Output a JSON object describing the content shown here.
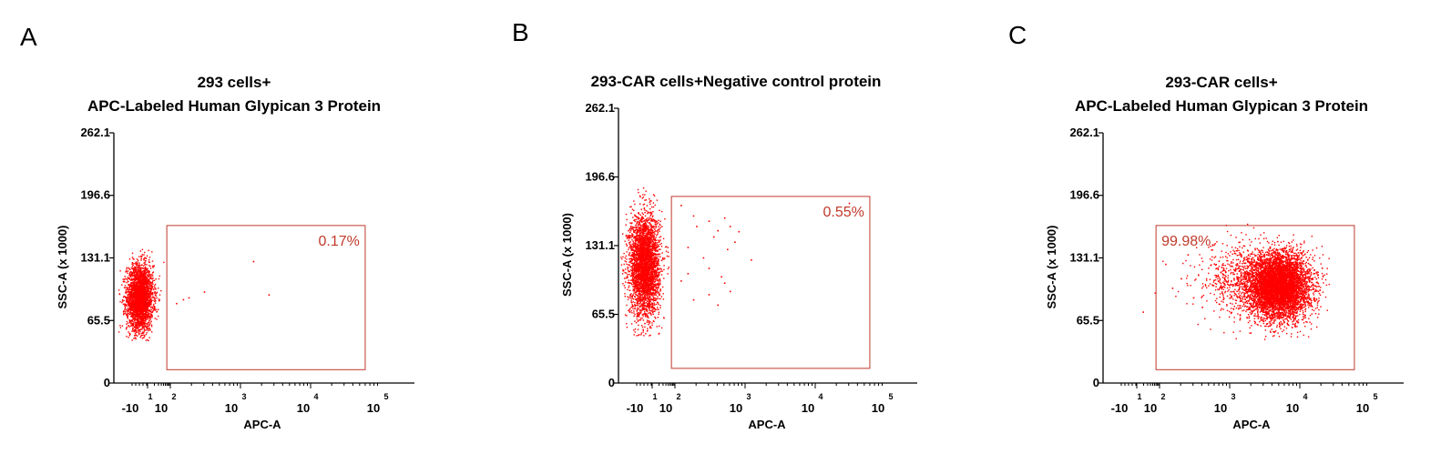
{
  "chart_data": [
    {
      "type": "scatter",
      "panel_label": "A",
      "title_lines": [
        "293 cells+",
        "APC-Labeled Human Glypican 3 Protein"
      ],
      "xlabel": "APC-A",
      "ylabel": "SSC-A (x 1000)",
      "x_scale": "log",
      "x_ticks": [
        {
          "base": "-10",
          "exp": "1"
        },
        {
          "base": "10",
          "exp": "2"
        },
        {
          "base": "10",
          "exp": "3"
        },
        {
          "base": "10",
          "exp": "4"
        },
        {
          "base": "10",
          "exp": "5"
        }
      ],
      "y_ticks": [
        "0",
        "65.5",
        "131.1",
        "196.6",
        "262.1"
      ],
      "ylim": [
        0,
        262.1
      ],
      "gate": {
        "x_min": 70,
        "x_max": 60000,
        "y_min": 14,
        "y_max": 165
      },
      "gate_percent": "0.17%",
      "populations": [
        {
          "x_center": 0,
          "x_spread": 8,
          "y_center": 90,
          "y_spread": 17,
          "count": 3000
        }
      ],
      "outlier_points": [
        [
          150,
          88
        ],
        [
          300,
          96
        ],
        [
          120,
          84
        ],
        [
          1500,
          128
        ],
        [
          2500,
          93
        ],
        [
          180,
          90
        ]
      ]
    },
    {
      "type": "scatter",
      "panel_label": "B",
      "title_lines": [
        "293-CAR cells+Negative control protein"
      ],
      "xlabel": "APC-A",
      "ylabel": "SSC-A (x 1000)",
      "x_scale": "log",
      "x_ticks": [
        {
          "base": "-10",
          "exp": "1"
        },
        {
          "base": "10",
          "exp": "2"
        },
        {
          "base": "10",
          "exp": "3"
        },
        {
          "base": "10",
          "exp": "4"
        },
        {
          "base": "10",
          "exp": "5"
        }
      ],
      "y_ticks": [
        "0",
        "65.5",
        "131.1",
        "196.6",
        "262.1"
      ],
      "ylim": [
        0,
        262.1
      ],
      "gate": {
        "x_min": 70,
        "x_max": 60000,
        "y_min": 14,
        "y_max": 178
      },
      "gate_percent": "0.55%",
      "populations": [
        {
          "x_center": 0,
          "x_spread": 9,
          "y_center": 113,
          "y_spread": 24,
          "count": 3500
        }
      ],
      "outlier_points": [
        [
          200,
          150
        ],
        [
          300,
          155
        ],
        [
          400,
          146
        ],
        [
          500,
          158
        ],
        [
          600,
          150
        ],
        [
          350,
          140
        ],
        [
          250,
          120
        ],
        [
          150,
          130
        ],
        [
          180,
          80
        ],
        [
          300,
          85
        ],
        [
          550,
          128
        ],
        [
          700,
          135
        ],
        [
          450,
          102
        ],
        [
          500,
          96
        ],
        [
          1200,
          118
        ],
        [
          800,
          145
        ],
        [
          150,
          105
        ],
        [
          300,
          110
        ],
        [
          120,
          98
        ],
        [
          600,
          88
        ],
        [
          400,
          75
        ],
        [
          30000,
          172
        ],
        [
          180,
          160
        ],
        [
          120,
          170
        ]
      ]
    },
    {
      "type": "scatter",
      "panel_label": "C",
      "title_lines": [
        "293-CAR cells+",
        "APC-Labeled Human Glypican 3 Protein"
      ],
      "xlabel": "APC-A",
      "ylabel": "SSC-A (x 1000)",
      "x_scale": "log",
      "x_ticks": [
        {
          "base": "-10",
          "exp": "1"
        },
        {
          "base": "10",
          "exp": "2"
        },
        {
          "base": "10",
          "exp": "3"
        },
        {
          "base": "10",
          "exp": "4"
        },
        {
          "base": "10",
          "exp": "5"
        }
      ],
      "y_ticks": [
        "0",
        "65.5",
        "131.1",
        "196.6",
        "262.1"
      ],
      "ylim": [
        0,
        262.1
      ],
      "gate": {
        "x_min": 70,
        "x_max": 60000,
        "y_min": 14,
        "y_max": 165
      },
      "gate_percent": "99.98%",
      "populations": [
        {
          "x_center": 5000,
          "x_spread": 0.22,
          "y_center": 102,
          "y_spread": 17,
          "count": 6000,
          "log": true
        },
        {
          "x_center": 1500,
          "x_spread": 0.32,
          "y_center": 108,
          "y_spread": 20,
          "count": 700,
          "log": true
        }
      ],
      "outlier_points": [
        [
          18,
          75
        ],
        [
          60,
          95
        ],
        [
          120,
          125
        ],
        [
          200,
          110
        ],
        [
          300,
          90
        ],
        [
          250,
          135
        ],
        [
          400,
          80
        ],
        [
          150,
          100
        ]
      ]
    }
  ]
}
